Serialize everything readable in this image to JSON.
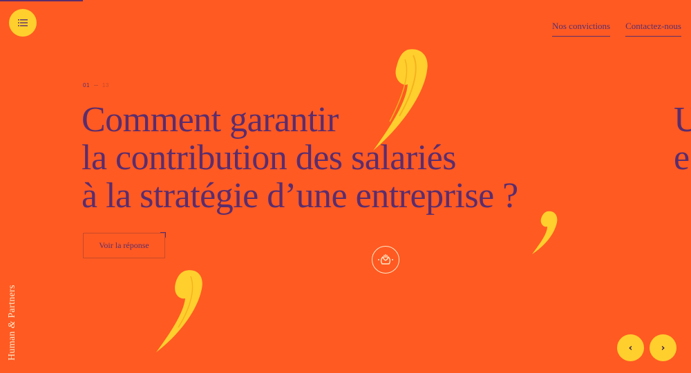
{
  "nav": {
    "menu_icon": "hamburger-icon",
    "links": [
      {
        "label": "Nos convictions"
      },
      {
        "label": "Contactez-nous"
      }
    ]
  },
  "slider": {
    "current": "01",
    "total": "13",
    "headline_lines": [
      "Comment garantir",
      "la contribution des salariés",
      "à la stratégie d’une entreprise ?"
    ],
    "next_headline_lines": [
      "U",
      "e"
    ],
    "cta_label": "Voir la réponse",
    "prev_icon": "chevron-left-icon",
    "next_icon": "chevron-right-icon",
    "prev_label": "‹",
    "next_label": "›"
  },
  "brand": {
    "name_part1": "Human ",
    "ampersand": "&",
    "name_part2": " Partners",
    "logo_icon": "hands-emblem-icon"
  },
  "colors": {
    "background": "#ff5a22",
    "accent_yellow": "#ffcf2e",
    "text_purple": "#5a2d6e",
    "cream": "#ffe9c9"
  }
}
